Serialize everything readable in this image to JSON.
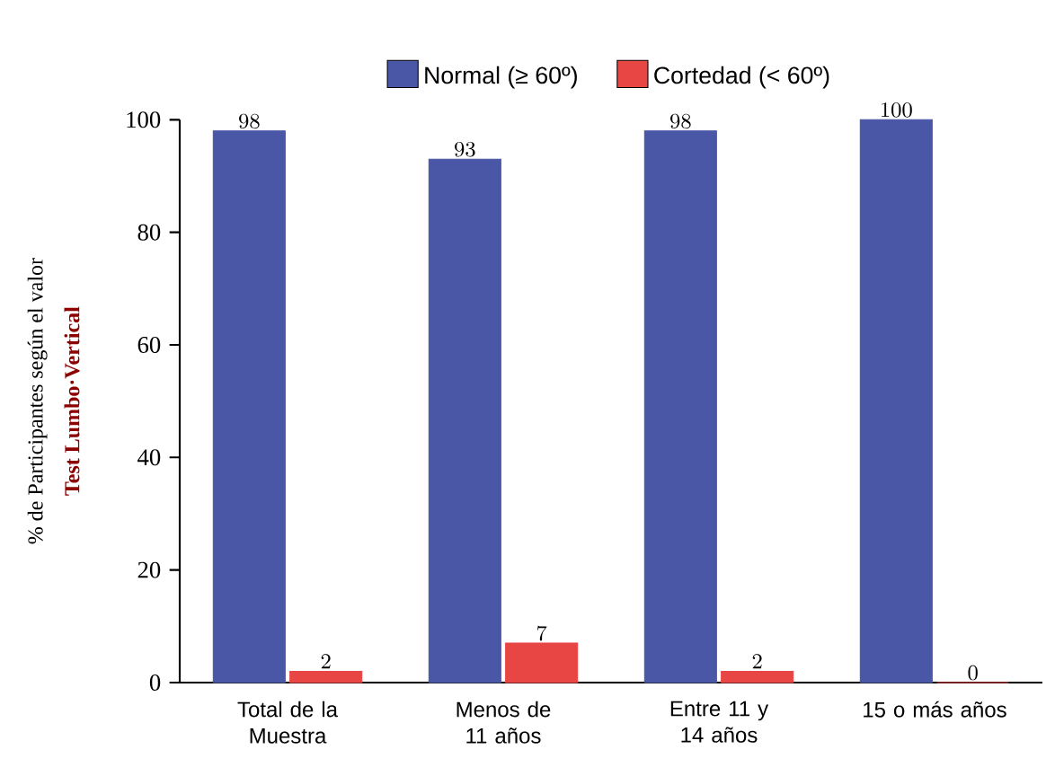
{
  "chart_data": {
    "type": "bar",
    "ylabel": "% de Participantes según el valor",
    "annotations": [
      "Test Lumbo·Vertical"
    ],
    "categories": [
      "Total de la Muestra",
      "Menos de 11 años",
      "Entre 11 y 14 años",
      "15 o más años"
    ],
    "series": [
      {
        "name": "Normal (≥ 60º)",
        "color": "#4a56a6",
        "values": [
          98,
          93,
          98,
          100
        ]
      },
      {
        "name": "Cortedad (< 60º)",
        "color": "#e84545",
        "values": [
          2,
          7,
          2,
          0
        ]
      }
    ],
    "ylim": [
      0,
      100
    ],
    "yticks": [
      0,
      20,
      40,
      60,
      80,
      100
    ],
    "data_labels": true,
    "legend": "top",
    "grid": false
  }
}
